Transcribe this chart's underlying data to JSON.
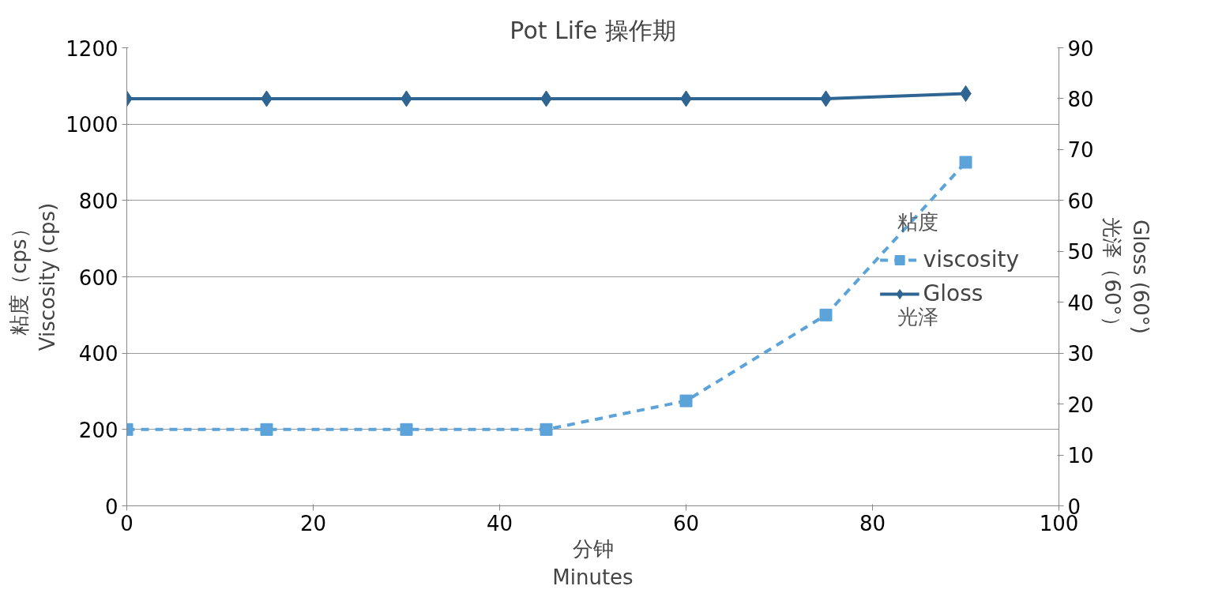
{
  "chart_data": {
    "type": "line",
    "title": "Pot Life 操作期",
    "xlabel": "分钟\nMinutes",
    "ylabel": "粘度（cps）\nViscosity (cps)",
    "y2label": "Gloss (60°)\n光泽（60°）",
    "x": [
      0,
      15,
      30,
      45,
      60,
      75,
      90
    ],
    "series": [
      {
        "name": "viscosity",
        "color": "#5ba3d9",
        "values": [
          200,
          200,
          200,
          200,
          275,
          500,
          900
        ],
        "marker": "square",
        "line_style": "dashed"
      },
      {
        "name": "Gloss",
        "color": "#2e6593",
        "values": [
          80,
          80,
          80,
          80,
          80,
          80,
          81
        ],
        "marker": "diamond",
        "line_style": "solid",
        "axis": "y2"
      }
    ],
    "xlim": [
      0,
      100
    ],
    "xticks": [
      0,
      20,
      40,
      60,
      80,
      100
    ],
    "ylim": [
      0,
      1200
    ],
    "yticks": [
      0,
      200,
      400,
      600,
      800,
      1000,
      1200
    ],
    "y2lim": [
      0,
      90
    ],
    "y2ticks": [
      0,
      10,
      20,
      30,
      40,
      50,
      60,
      70,
      80,
      90
    ],
    "grid": "y",
    "legend": "right",
    "annotations": [
      "粘度",
      "光泽"
    ]
  }
}
